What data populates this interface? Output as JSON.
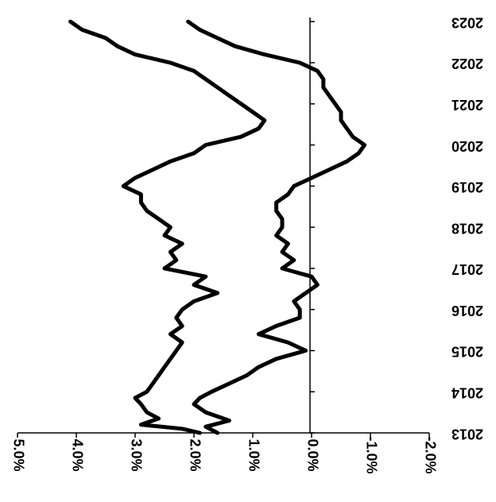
{
  "chart_data": {
    "type": "line",
    "orientation": "rotated-180",
    "title": "",
    "xlabel": "",
    "ylabel": "",
    "x_tick_labels": [
      "2013",
      "2014",
      "2015",
      "2016",
      "2017",
      "2018",
      "2019",
      "2020",
      "2021",
      "2022",
      "2023"
    ],
    "y_tick_labels": [
      "5.0%",
      "4.0%",
      "3.0%",
      "2.0%",
      "1.0%",
      "0.0%",
      "-1.0%",
      "-2.0%"
    ],
    "y_ticks": [
      5.0,
      4.0,
      3.0,
      2.0,
      1.0,
      0.0,
      -1.0,
      -2.0
    ],
    "ylim": [
      -2.0,
      5.0
    ],
    "xlim": [
      2013.0,
      2023.1
    ],
    "grid": false,
    "line_color": "#000000",
    "series": [
      {
        "x": [
          2013.0,
          2013.1,
          2013.2,
          2013.35,
          2013.5,
          2013.7,
          2013.85,
          2014.0,
          2014.2,
          2014.4,
          2014.6,
          2014.8,
          2015.0,
          2015.2,
          2015.4,
          2015.6,
          2015.8,
          2016.0,
          2016.2,
          2016.4,
          2016.6,
          2016.8,
          2017.0,
          2017.2,
          2017.4,
          2017.6,
          2017.8,
          2018.0,
          2018.2,
          2018.4,
          2018.6,
          2018.8,
          2019.0,
          2019.2,
          2019.4,
          2019.6,
          2019.8,
          2020.0,
          2020.2,
          2020.4,
          2020.6,
          2020.8,
          2021.0,
          2021.2,
          2021.4,
          2021.6,
          2021.8,
          2022.0,
          2022.2,
          2022.4,
          2022.6,
          2022.8,
          2023.0
        ],
        "y": [
          1.9,
          2.2,
          2.9,
          2.6,
          2.8,
          2.9,
          3.0,
          2.8,
          2.7,
          2.6,
          2.5,
          2.4,
          2.3,
          2.2,
          2.4,
          2.2,
          2.3,
          2.2,
          2.0,
          1.6,
          2.0,
          1.8,
          2.5,
          2.3,
          2.4,
          2.2,
          2.5,
          2.4,
          2.6,
          2.8,
          2.9,
          2.9,
          3.2,
          3.0,
          2.7,
          2.4,
          2.0,
          1.8,
          1.2,
          0.9,
          0.8,
          1.0,
          1.2,
          1.4,
          1.6,
          1.8,
          2.0,
          2.4,
          3.0,
          3.3,
          3.5,
          3.9,
          4.1
        ]
      },
      {
        "x": [
          2013.0,
          2013.15,
          2013.3,
          2013.5,
          2013.7,
          2013.85,
          2014.0,
          2014.2,
          2014.4,
          2014.6,
          2014.8,
          2015.0,
          2015.2,
          2015.4,
          2015.6,
          2015.8,
          2016.0,
          2016.2,
          2016.4,
          2016.6,
          2016.8,
          2017.0,
          2017.2,
          2017.4,
          2017.6,
          2017.8,
          2018.0,
          2018.2,
          2018.4,
          2018.6,
          2018.8,
          2019.0,
          2019.2,
          2019.4,
          2019.6,
          2019.8,
          2020.0,
          2020.2,
          2020.4,
          2020.6,
          2020.8,
          2021.0,
          2021.2,
          2021.4,
          2021.6,
          2021.8,
          2022.0,
          2022.2,
          2022.4,
          2022.6,
          2022.8,
          2023.0
        ],
        "y": [
          1.6,
          1.8,
          1.4,
          1.8,
          2.0,
          1.9,
          1.7,
          1.4,
          1.1,
          0.9,
          0.6,
          0.1,
          0.4,
          0.9,
          0.6,
          0.2,
          0.2,
          0.3,
          0.1,
          -0.1,
          0.0,
          0.5,
          0.3,
          0.5,
          0.4,
          0.6,
          0.5,
          0.5,
          0.6,
          0.6,
          0.4,
          0.3,
          0.0,
          -0.3,
          -0.6,
          -0.8,
          -0.9,
          -0.7,
          -0.6,
          -0.5,
          -0.5,
          -0.4,
          -0.3,
          -0.2,
          -0.2,
          -0.1,
          0.2,
          0.8,
          1.3,
          1.6,
          1.9,
          2.1
        ]
      }
    ]
  }
}
